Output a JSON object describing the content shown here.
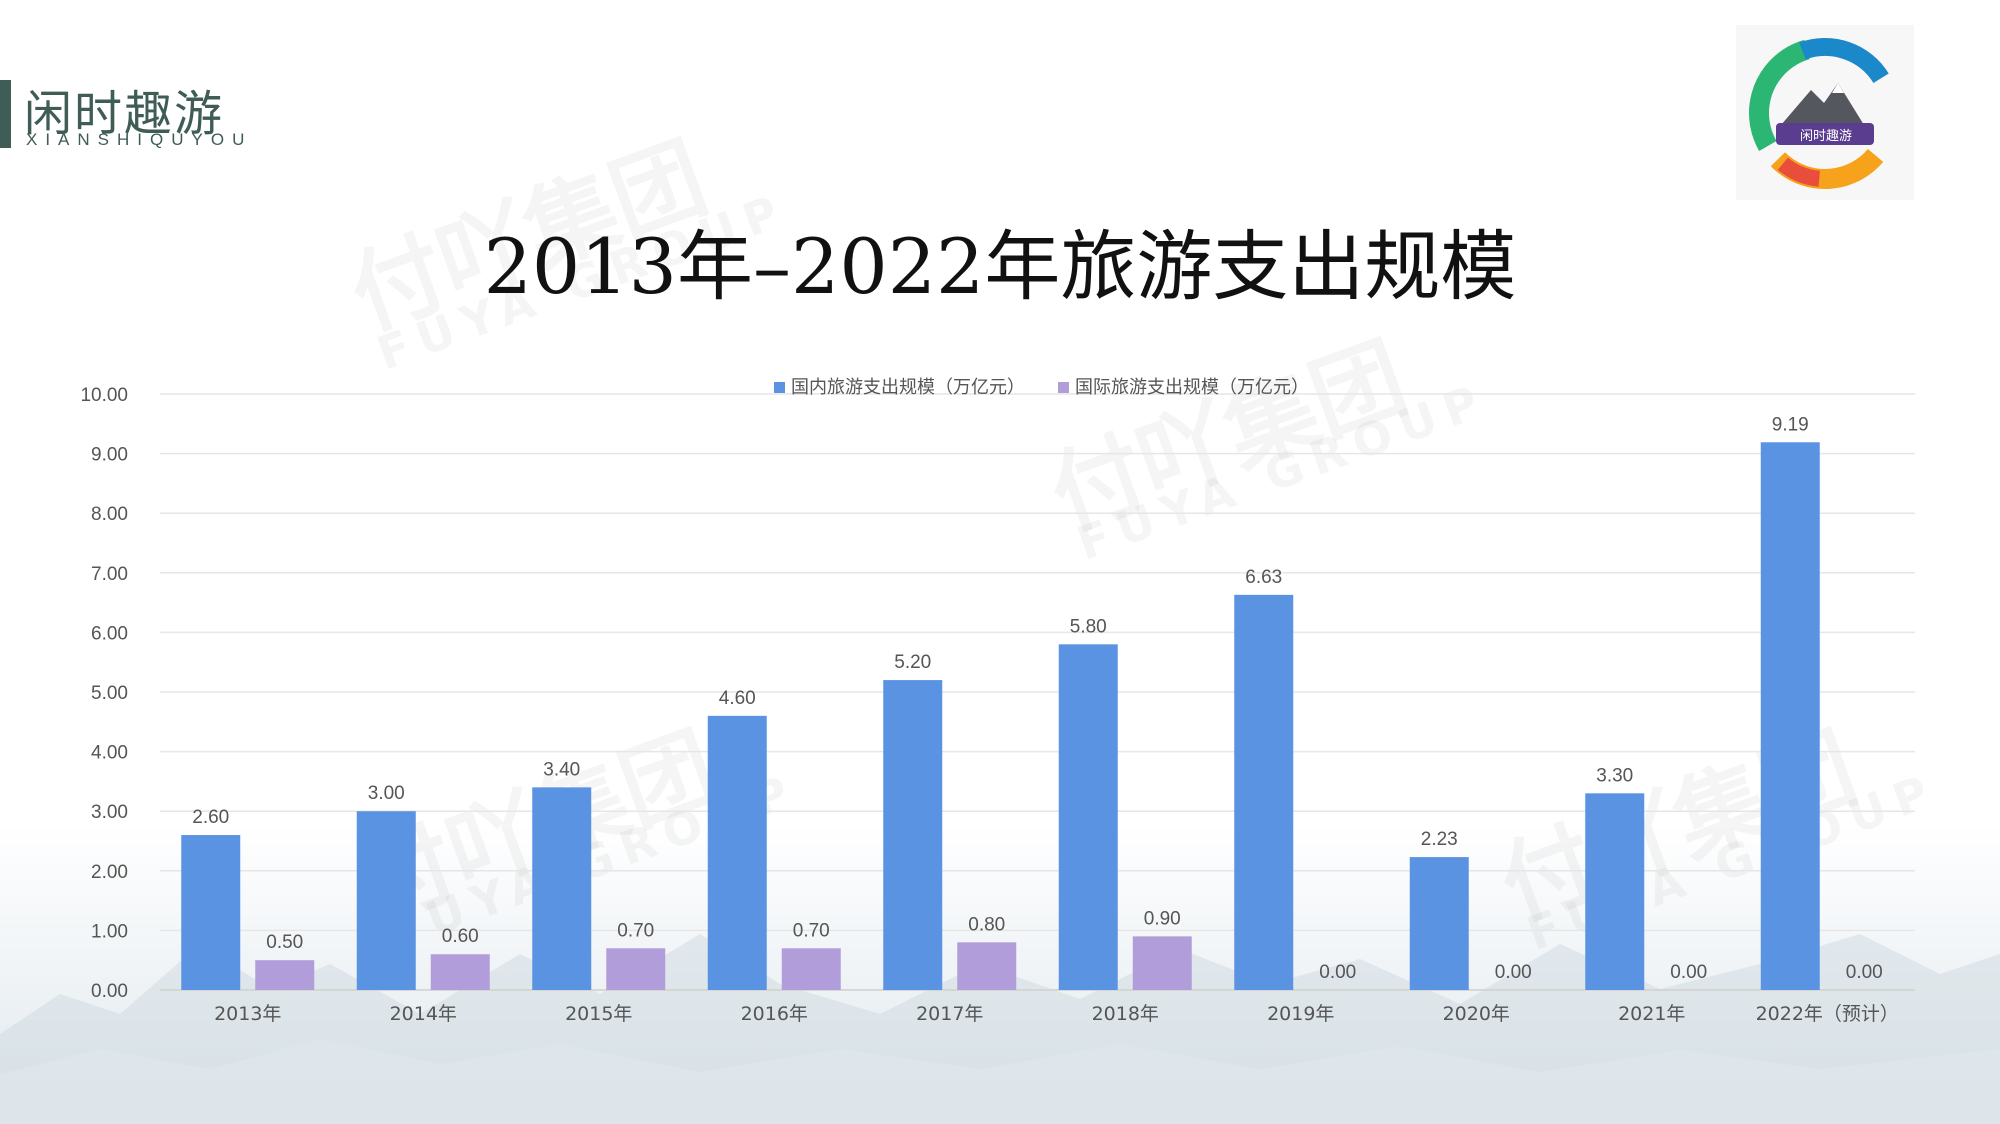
{
  "brand": {
    "name": "闲时趣游",
    "subtitle": "XIANSHIQUYOU",
    "logo_text": "闲时趣游",
    "watermark_cn": "付吖集团",
    "watermark_en": "FUYA GROUP"
  },
  "colors": {
    "domestic": "#5b93e3",
    "international": "#b29ddb",
    "grid": "#e6e6e6",
    "axis_text": "#555555",
    "brand": "#3f5c57"
  },
  "chart_data": {
    "type": "bar",
    "title": "2013年–2022年旅游支出规模",
    "categories": [
      "2013年",
      "2014年",
      "2015年",
      "2016年",
      "2017年",
      "2018年",
      "2019年",
      "2020年",
      "2021年",
      "2022年（预计）"
    ],
    "series": [
      {
        "name": "国内旅游支出规模（万亿元）",
        "values": [
          2.6,
          3.0,
          3.4,
          4.6,
          5.2,
          5.8,
          6.63,
          2.23,
          3.3,
          9.19
        ]
      },
      {
        "name": "国际旅游支出规模（万亿元）",
        "values": [
          0.5,
          0.6,
          0.7,
          0.7,
          0.8,
          0.9,
          0.0,
          0.0,
          0.0,
          0.0
        ]
      }
    ],
    "y_ticks": [
      "0.00",
      "1.00",
      "2.00",
      "3.00",
      "4.00",
      "5.00",
      "6.00",
      "7.00",
      "8.00",
      "9.00",
      "10.00"
    ],
    "ylim": [
      0,
      10
    ],
    "legend_position": "top",
    "grid": true,
    "data_labels": true
  }
}
